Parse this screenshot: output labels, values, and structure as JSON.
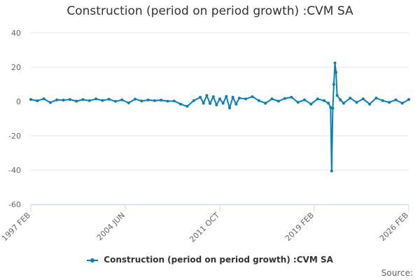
{
  "chart_data": {
    "type": "line",
    "title": "Construction (period on period growth) :CVM SA",
    "ylim": [
      -60,
      40
    ],
    "yticks": [
      "40",
      "20",
      "0",
      "-20",
      "-40",
      "-60"
    ],
    "xtick_labels": [
      "1997 FEB",
      "2004 JUN",
      "2011 OCT",
      "2019 FEB",
      "2026 FEB"
    ],
    "x_start": "1997-02",
    "x_end": "2026-02",
    "grid": true,
    "legend_position": "bottom",
    "colors": {
      "series": "#0b7fb8"
    },
    "series": [
      {
        "name": "Construction (period on period growth) :CVM SA",
        "points": [
          [
            "1997-02",
            1.2
          ],
          [
            "1997-08",
            0.4
          ],
          [
            "1998-02",
            1.6
          ],
          [
            "1998-08",
            -0.6
          ],
          [
            "1999-02",
            1.0
          ],
          [
            "1999-08",
            0.8
          ],
          [
            "2000-02",
            1.2
          ],
          [
            "2000-08",
            0.2
          ],
          [
            "2001-02",
            1.1
          ],
          [
            "2001-08",
            0.5
          ],
          [
            "2002-02",
            1.5
          ],
          [
            "2002-08",
            0.6
          ],
          [
            "2003-02",
            1.3
          ],
          [
            "2003-08",
            0.1
          ],
          [
            "2004-02",
            1.0
          ],
          [
            "2004-08",
            -0.8
          ],
          [
            "2005-02",
            1.4
          ],
          [
            "2005-08",
            0.3
          ],
          [
            "2006-02",
            0.9
          ],
          [
            "2006-08",
            0.5
          ],
          [
            "2007-02",
            0.8
          ],
          [
            "2007-08",
            0.2
          ],
          [
            "2008-02",
            0.3
          ],
          [
            "2008-08",
            -1.5
          ],
          [
            "2009-02",
            -2.8
          ],
          [
            "2009-08",
            0.5
          ],
          [
            "2010-02",
            2.5
          ],
          [
            "2010-05",
            -1.0
          ],
          [
            "2010-08",
            3.5
          ],
          [
            "2010-11",
            -1.2
          ],
          [
            "2011-02",
            2.8
          ],
          [
            "2011-05",
            -2.0
          ],
          [
            "2011-08",
            1.5
          ],
          [
            "2011-11",
            -1.0
          ],
          [
            "2012-02",
            3.0
          ],
          [
            "2012-05",
            -3.8
          ],
          [
            "2012-08",
            2.5
          ],
          [
            "2012-11",
            -1.5
          ],
          [
            "2013-02",
            2.0
          ],
          [
            "2013-08",
            1.5
          ],
          [
            "2014-02",
            2.8
          ],
          [
            "2014-08",
            0.5
          ],
          [
            "2015-02",
            -1.0
          ],
          [
            "2015-08",
            1.5
          ],
          [
            "2016-02",
            0.2
          ],
          [
            "2016-08",
            1.8
          ],
          [
            "2017-02",
            2.5
          ],
          [
            "2017-08",
            -0.5
          ],
          [
            "2018-02",
            1.0
          ],
          [
            "2018-08",
            -1.5
          ],
          [
            "2019-02",
            1.5
          ],
          [
            "2019-08",
            0.5
          ],
          [
            "2019-12",
            -1.0
          ],
          [
            "2020-02",
            -3.5
          ],
          [
            "2020-03",
            -40.5
          ],
          [
            "2020-04",
            -4.0
          ],
          [
            "2020-05",
            10.0
          ],
          [
            "2020-06",
            22.5
          ],
          [
            "2020-07",
            17.0
          ],
          [
            "2020-08",
            3.5
          ],
          [
            "2020-11",
            1.0
          ],
          [
            "2021-02",
            -1.0
          ],
          [
            "2021-08",
            2.0
          ],
          [
            "2022-02",
            -0.5
          ],
          [
            "2022-08",
            1.5
          ],
          [
            "2023-02",
            -1.5
          ],
          [
            "2023-08",
            2.0
          ],
          [
            "2024-02",
            0.5
          ],
          [
            "2024-08",
            -0.5
          ],
          [
            "2025-02",
            1.0
          ],
          [
            "2025-08",
            -1.0
          ],
          [
            "2026-02",
            1.2
          ]
        ]
      }
    ]
  },
  "legend": {
    "label": "Construction (period on period growth) :CVM SA"
  },
  "source": {
    "label": "Source:"
  }
}
